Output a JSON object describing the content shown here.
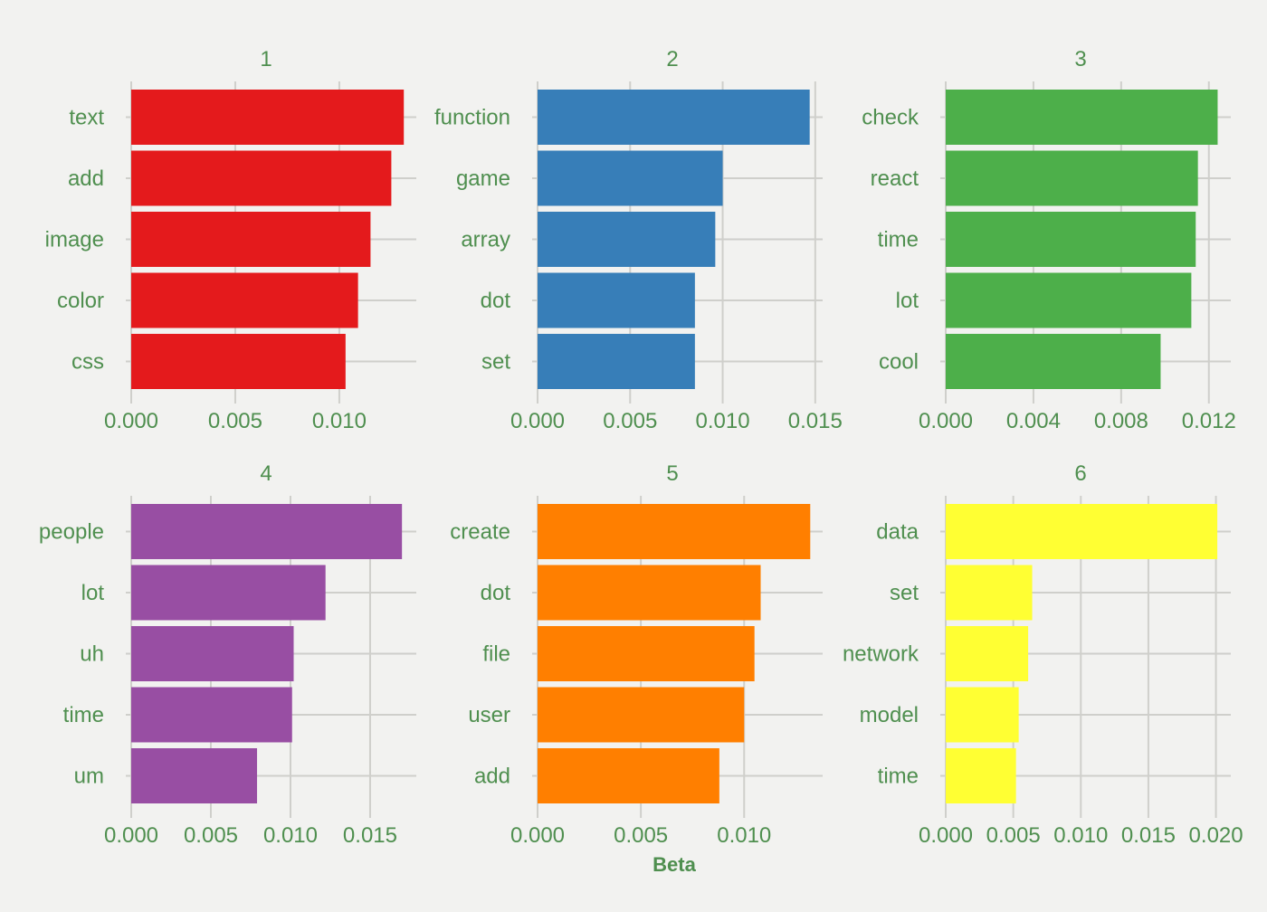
{
  "chart_data": {
    "type": "bar",
    "orientation": "horizontal",
    "xlabel": "Beta",
    "grid": true,
    "legend": "none",
    "panels": [
      {
        "title": "1",
        "color": "#e41a1c",
        "categories": [
          "text",
          "add",
          "image",
          "color",
          "css"
        ],
        "values": [
          0.0131,
          0.0125,
          0.0115,
          0.0109,
          0.0103
        ],
        "xlim": [
          0,
          0.0137
        ],
        "ticks": [
          0.0,
          0.005,
          0.01
        ],
        "tick_labels": [
          "0.000",
          "0.005",
          "0.010"
        ]
      },
      {
        "title": "2",
        "color": "#377eb8",
        "categories": [
          "function",
          "game",
          "array",
          "dot",
          "set"
        ],
        "values": [
          0.0147,
          0.01,
          0.0096,
          0.0085,
          0.0085
        ],
        "xlim": [
          0,
          0.0154
        ],
        "ticks": [
          0.0,
          0.005,
          0.01,
          0.015
        ],
        "tick_labels": [
          "0.000",
          "0.005",
          "0.010",
          "0.015"
        ]
      },
      {
        "title": "3",
        "color": "#4daf4a",
        "categories": [
          "check",
          "react",
          "time",
          "lot",
          "cool"
        ],
        "values": [
          0.0124,
          0.0115,
          0.0114,
          0.0112,
          0.0098
        ],
        "xlim": [
          0,
          0.013
        ],
        "ticks": [
          0.0,
          0.004,
          0.008,
          0.012
        ],
        "tick_labels": [
          "0.000",
          "0.004",
          "0.008",
          "0.012"
        ]
      },
      {
        "title": "4",
        "color": "#984ea3",
        "categories": [
          "people",
          "lot",
          "uh",
          "time",
          "um"
        ],
        "values": [
          0.017,
          0.0122,
          0.0102,
          0.0101,
          0.0079
        ],
        "xlim": [
          0,
          0.0179
        ],
        "ticks": [
          0.0,
          0.005,
          0.01,
          0.015
        ],
        "tick_labels": [
          "0.000",
          "0.005",
          "0.010",
          "0.015"
        ]
      },
      {
        "title": "5",
        "color": "#ff7f00",
        "categories": [
          "create",
          "dot",
          "file",
          "user",
          "add"
        ],
        "values": [
          0.0132,
          0.0108,
          0.0105,
          0.01,
          0.0088
        ],
        "xlim": [
          0,
          0.0138
        ],
        "ticks": [
          0.0,
          0.005,
          0.01
        ],
        "tick_labels": [
          "0.000",
          "0.005",
          "0.010"
        ]
      },
      {
        "title": "6",
        "color": "#ffff33",
        "categories": [
          "data",
          "set",
          "network",
          "model",
          "time"
        ],
        "values": [
          0.0201,
          0.0064,
          0.0061,
          0.0054,
          0.0052
        ],
        "xlim": [
          0,
          0.0211
        ],
        "ticks": [
          0.0,
          0.005,
          0.01,
          0.015,
          0.02
        ],
        "tick_labels": [
          "0.000",
          "0.005",
          "0.010",
          "0.015",
          "0.020"
        ]
      }
    ]
  }
}
